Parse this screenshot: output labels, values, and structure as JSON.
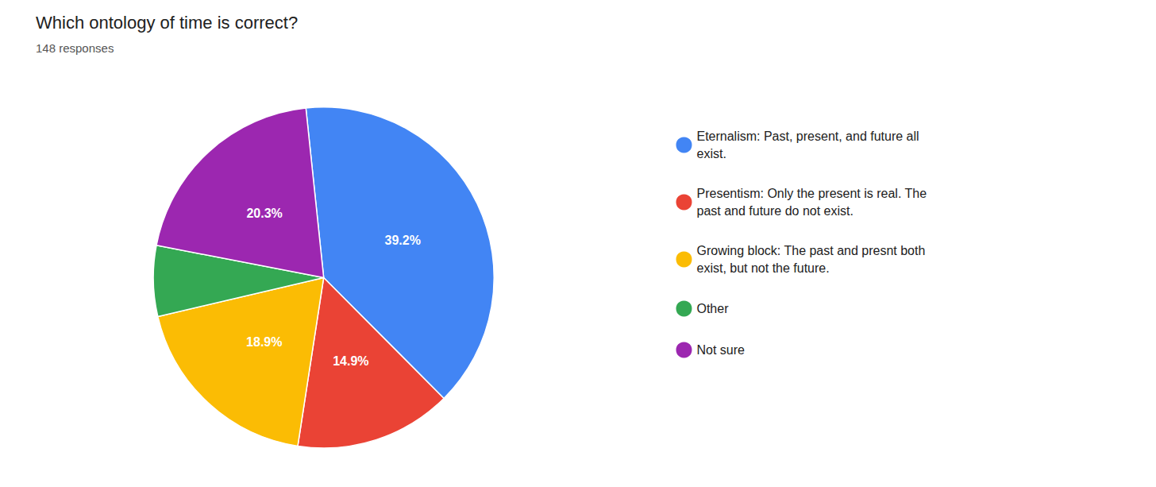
{
  "chart_data": {
    "type": "pie",
    "title": "Which ontology of time is correct?",
    "subtitle": "148 responses",
    "categories": [
      "Eternalism: Past, present, and future all\nexist.",
      "Presentism: Only the present is real. The\npast and future do not exist.",
      "Growing block: The past and presnt both\nexist, but not the future.",
      "Other",
      "Not sure"
    ],
    "values": [
      39.2,
      14.9,
      18.9,
      6.7,
      20.3
    ],
    "value_labels": [
      "39.2%",
      "14.9%",
      "18.9%",
      null,
      "20.3%"
    ],
    "colors": [
      "#4285F4",
      "#EA4335",
      "#FBBC04",
      "#34A853",
      "#9C27B0"
    ],
    "data_labels": true,
    "legend": "right"
  }
}
